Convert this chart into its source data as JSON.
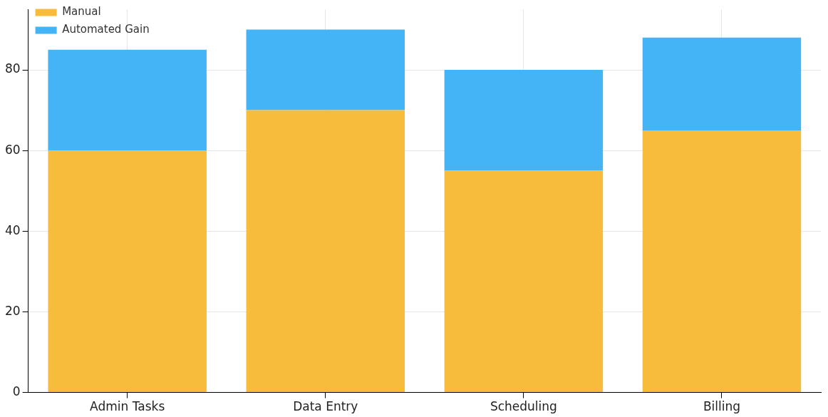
{
  "chart_data": {
    "type": "bar",
    "stacked": true,
    "categories": [
      "Admin Tasks",
      "Data Entry",
      "Scheduling",
      "Billing"
    ],
    "series": [
      {
        "name": "Manual",
        "color": "#f8bc3c",
        "values": [
          60,
          70,
          55,
          65
        ]
      },
      {
        "name": "Automated Gain",
        "color": "#45b4f6",
        "values": [
          25,
          20,
          25,
          23
        ]
      }
    ],
    "ylim": [
      0,
      95
    ],
    "yticks": [
      0,
      20,
      40,
      60,
      80
    ],
    "grid": true,
    "legend": "top left"
  }
}
